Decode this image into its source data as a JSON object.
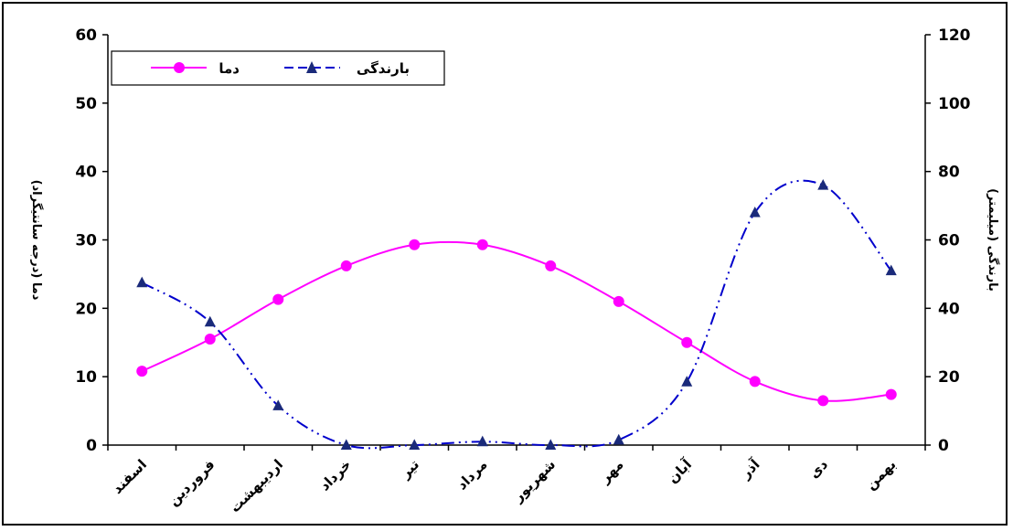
{
  "chart_data": {
    "type": "line",
    "categories": [
      "اسفند",
      "فروردین",
      "اردیبهشت",
      "خرداد",
      "تیر",
      "مرداد",
      "شهریور",
      "مهر",
      "آبان",
      "آذر",
      "دی",
      "بهمن"
    ],
    "series": [
      {
        "name": "دما",
        "axis": "left",
        "color": "#ff00ff",
        "marker": "circle",
        "line_style": "solid",
        "values": [
          10.8,
          15.5,
          21.3,
          26.2,
          29.3,
          29.3,
          26.2,
          21.0,
          15.0,
          9.3,
          6.5,
          7.4
        ]
      },
      {
        "name": "بارندگی",
        "axis": "right",
        "color": "#0000cc",
        "marker_color": "#1a2a7a",
        "marker": "triangle",
        "line_style": "dash-dot-dot",
        "values": [
          47.5,
          36.0,
          11.5,
          0.0,
          0.0,
          1.0,
          0.0,
          1.5,
          18.5,
          68.0,
          76.0,
          51.0
        ]
      }
    ],
    "ylabel_left": "دما (درجه سانتیگراد)",
    "ylabel_right": "بارندگی (میلیمتر)",
    "ylim_left": [
      0,
      60
    ],
    "ylim_right": [
      0,
      120
    ],
    "yticks_left": [
      "0",
      "10",
      "20",
      "30",
      "40",
      "50",
      "60"
    ],
    "yticks_right": [
      "0",
      "20",
      "40",
      "60",
      "80",
      "100",
      "120"
    ],
    "grid": false,
    "legend_position": "top-left"
  }
}
